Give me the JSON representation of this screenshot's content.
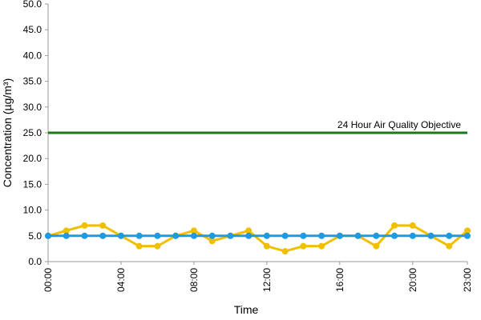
{
  "chart_data": {
    "type": "line",
    "x_label": "Time",
    "y_label": "Concentration (µg/m³)",
    "categories": [
      "00:00",
      null,
      null,
      null,
      "04:00",
      null,
      null,
      null,
      "08:00",
      null,
      null,
      null,
      "12:00",
      null,
      null,
      null,
      "16:00",
      null,
      null,
      null,
      "20:00",
      null,
      null,
      "23:00"
    ],
    "series": [
      {
        "color": "#f0c000",
        "values": [
          5,
          6,
          7,
          7,
          5,
          3,
          3,
          5,
          6,
          4,
          5,
          6,
          3,
          2,
          3,
          3,
          5,
          5,
          3,
          7,
          7,
          5,
          3,
          6
        ]
      },
      {
        "color": "#1e9be0",
        "values": [
          5,
          5,
          5,
          5,
          5,
          5,
          5,
          5,
          5,
          5,
          5,
          5,
          5,
          5,
          5,
          5,
          5,
          5,
          5,
          5,
          5,
          5,
          5,
          5
        ]
      }
    ],
    "reference_line": {
      "value": 25,
      "label": "24 Hour Air Quality Objective",
      "color": "#1a7a1a"
    },
    "ylim": [
      0,
      50
    ],
    "yticks": [
      {
        "value": 0,
        "label": "0.0"
      },
      {
        "value": 5,
        "label": "5.0"
      },
      {
        "value": 10,
        "label": "10.0"
      },
      {
        "value": 15,
        "label": "15.0"
      },
      {
        "value": 20,
        "label": "20.0"
      },
      {
        "value": 25,
        "label": "25.0"
      },
      {
        "value": 30,
        "label": "30.0"
      },
      {
        "value": 35,
        "label": "35.0"
      },
      {
        "value": 40,
        "label": "40.0"
      },
      {
        "value": 45,
        "label": "45.0"
      },
      {
        "value": 50,
        "label": "50.0"
      }
    ],
    "grid": false
  }
}
